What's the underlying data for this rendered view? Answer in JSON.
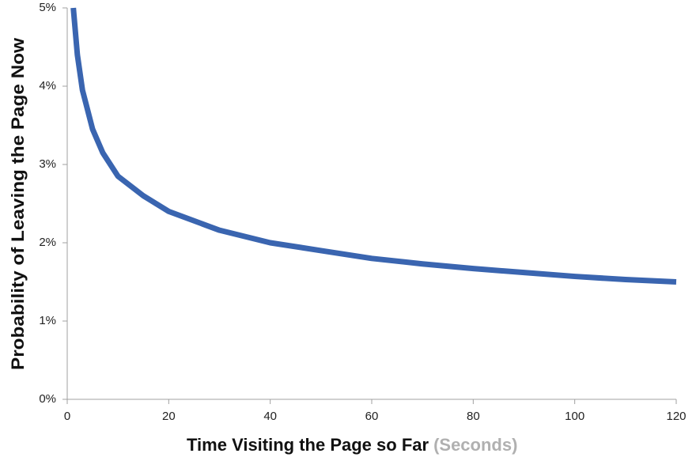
{
  "chart_data": {
    "type": "line",
    "x_label": "Time Visiting the Page so Far",
    "x_label_unit": "(Seconds)",
    "y_label": "Probability of Leaving  the Page Now",
    "x": [
      1.2,
      2,
      3,
      5,
      7,
      10,
      15,
      20,
      30,
      40,
      50,
      60,
      70,
      80,
      90,
      100,
      110,
      120
    ],
    "series": [
      {
        "color": "#3a65b0",
        "values": [
          5.0,
          4.4,
          3.95,
          3.45,
          3.15,
          2.85,
          2.6,
          2.4,
          2.16,
          2.0,
          1.9,
          1.8,
          1.73,
          1.67,
          1.62,
          1.57,
          1.53,
          1.5
        ]
      }
    ],
    "xlim": [
      0,
      120
    ],
    "xticks": [
      0,
      20,
      40,
      60,
      80,
      100,
      120
    ],
    "ylim": [
      0,
      5
    ],
    "yticks": [
      {
        "value": 0,
        "label": "0%"
      },
      {
        "value": 1,
        "label": "1%"
      },
      {
        "value": 2,
        "label": "2%"
      },
      {
        "value": 3,
        "label": "3%"
      },
      {
        "value": 4,
        "label": "4%"
      },
      {
        "value": 5,
        "label": "5%"
      }
    ],
    "axis_color": "#a0a0a0",
    "label_unit_color": "#b0b0b0"
  }
}
